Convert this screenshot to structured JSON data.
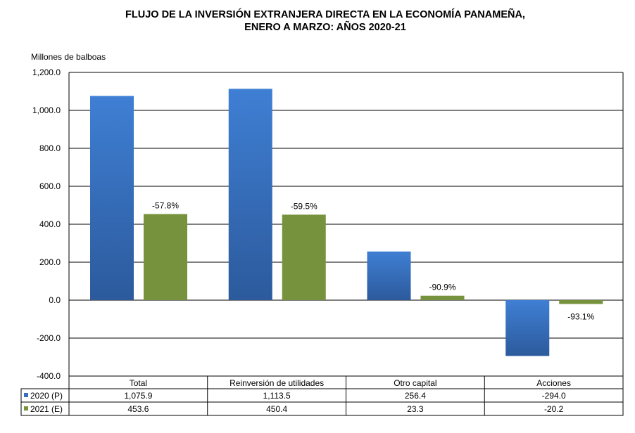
{
  "chart_data": {
    "type": "bar",
    "title_line1": "FLUJO DE LA INVERSIÓN EXTRANJERA DIRECTA EN LA ECONOMÍA PANAMEÑA,",
    "title_line2": "ENERO A MARZO: AÑOS 2020-21",
    "ylabel": "Millones de balboas",
    "ylim": [
      -400,
      1200
    ],
    "yticks": [
      "1,200.0",
      "1,000.0",
      "800.0",
      "600.0",
      "400.0",
      "200.0",
      "0.0",
      "-200.0",
      "-400.0"
    ],
    "ytick_values": [
      1200,
      1000,
      800,
      600,
      400,
      200,
      0,
      -200,
      -400
    ],
    "grid": true,
    "categories": [
      "Total",
      "Reinversión de utilidades",
      "Otro capital",
      "Acciones"
    ],
    "series": [
      {
        "name": "2020 (P)",
        "color": "#3a6fbd",
        "values": [
          1075.9,
          1113.5,
          256.4,
          -294.0
        ],
        "labels": [
          "1,075.9",
          "1,113.5",
          "256.4",
          "-294.0"
        ]
      },
      {
        "name": "2021 (E)",
        "color": "#76923c",
        "values": [
          453.6,
          450.4,
          23.3,
          -20.2
        ],
        "labels": [
          "453.6",
          "450.4",
          "23.3",
          "-20.2"
        ]
      }
    ],
    "annotations": [
      "-57.8%",
      "-59.5%",
      "-90.9%",
      "-93.1%"
    ]
  }
}
